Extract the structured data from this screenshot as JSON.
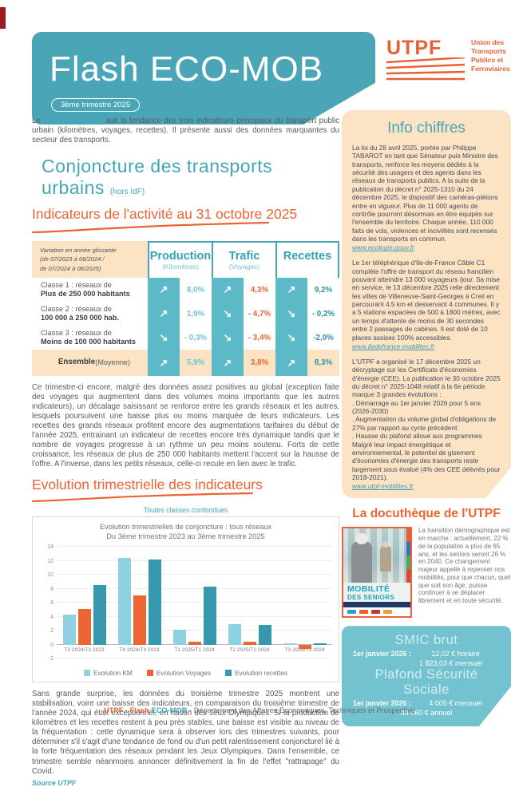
{
  "header": {
    "title": "Flash ECO-MOB",
    "badge": "3ème trimestre 2025",
    "logo": {
      "acronym": "UTPF",
      "name_lines": [
        "Union des",
        "Transports",
        "Publics et",
        "Ferroviaires"
      ]
    }
  },
  "intro": {
    "pre": "Le ",
    "flash": "Flash",
    "ecomob": " ECO-MOB",
    "rest": " suit la tendance des trois indicateurs principaux du transport public urbain (kilomètres, voyages, recettes). Il présente aussi des données marquantes du secteur des transports."
  },
  "section1": {
    "title": "Conjoncture des transports urbains",
    "title_suffix": "(hors IdF)",
    "subtitle": "Indicateurs de l'activité au 31 octobre 2025",
    "table": {
      "variation_note": "Variation en année glissante\n(de 07/2023 à 06/2024 /\nde 07/2024 à 06/2025)",
      "columns": [
        {
          "label": "Production",
          "sub": "(Kilomètres)"
        },
        {
          "label": "Trafic",
          "sub": "(Voyages)"
        },
        {
          "label": "Recettes",
          "sub": ""
        }
      ],
      "rows": [
        {
          "line1": "Classe 1 : réseaux de",
          "line2": "Plus de 250 000 habitants",
          "cells": [
            {
              "arrow": "↗",
              "value": "8,0%"
            },
            {
              "arrow": "↗",
              "value": "4,3%"
            },
            {
              "arrow": "↗",
              "value": "9,2%"
            }
          ]
        },
        {
          "line1": "Classe 2 : réseaux de",
          "line2": "100 000 à 250 000 hab.",
          "cells": [
            {
              "arrow": "↗",
              "value": "1,9%"
            },
            {
              "arrow": "↘",
              "value": "- 4,7%"
            },
            {
              "arrow": "↘",
              "value": "- 0,2%"
            }
          ]
        },
        {
          "line1": "Classe 3 : réseaux de",
          "line2": "Moins de 100 000 habitants",
          "cells": [
            {
              "arrow": "↘",
              "value": "- 0,3%"
            },
            {
              "arrow": "↘",
              "value": "- 3,4%"
            },
            {
              "arrow": "↘",
              "value": "-2,0%"
            }
          ]
        }
      ],
      "total_row": {
        "bold": "Ensemble",
        "normal": " (Moyenne)",
        "cells": [
          {
            "arrow": "↗",
            "value": "5,9%"
          },
          {
            "arrow": "↗",
            "value": "3,8%"
          },
          {
            "arrow": "↗",
            "value": "8,3%"
          }
        ]
      }
    },
    "paragraph": "Ce trimestre-ci encore, malgré des données assez positives au global (exception faite des voyages qui augmentent dans des volumes moins importants que les autres indicateurs), un décalage saisissant se renforce entre les grands réseaux et les autres, lesquels poursuivent une baisse plus ou moins marquée de leurs indicateurs. Les recettes des grands réseaux profitent encore des augmentations tarifaires du début de l'année 2025, entrainant un indicateur de recettes encore très dynamique tandis que le nombre de voyages progresse à un rythme un peu moins soutenu. Forts de cette croissance, les réseaux de plus de 250 000 habitants mettent l'accent sur la hausse de l'offre. A l'inverse, dans les petits réseaux, celle-ci recule en lien avec le trafic."
  },
  "section2": {
    "title": "Evolution trimestrielle des indicateurs",
    "note": "Toutes classes confondues",
    "paragraph": "Sans grande surprise, les données du troisième trimestre 2025 montrent une stabilisation, voire une baisse des indicateurs, en comparaison du troisième trimestre de l'année 2024, qui était exceptionnel, en raison des Jeux Olympiques. Si la production de kilomètres et les recettes restent à peu près stables, une baisse est visible au niveau de la fréquentation : cette dynamique sera à observer lors des trimestres suivants, pour déterminer s'il s'agit d'une tendance de fond ou d'un petit ralentissement conjoncturel lié à la forte fréquentation des réseaux pendant les Jeux Olympiques. Dans l'ensemble, ce trimestre semble néanmoins annoncer définitivement la fin de l'effet \"rattrapage\" du Covid.",
    "source": "Source UTPF"
  },
  "chart_data": {
    "type": "bar",
    "title": "Evolution trimestrielles de conjoncture : tous réseaux",
    "subtitle": "Du 3ème trimestre 2023 au 3ème trimestre 2025",
    "categories": [
      "T3 2024/T3 2023",
      "T4 2024/T4 2023",
      "T1 2025/T1 2024",
      "T2 2025/T2 2024",
      "T3 2025/T3 2024"
    ],
    "series": [
      {
        "name": "Evolution KM",
        "color": "#8ed2e2",
        "values": [
          4.3,
          12.4,
          2.1,
          2.9,
          0.15
        ]
      },
      {
        "name": "Evolution Voyages",
        "color": "#ec6533",
        "values": [
          5.1,
          7.1,
          0.4,
          0.45,
          -0.6
        ]
      },
      {
        "name": "Evolution recettes",
        "color": "#3598ab",
        "values": [
          8.6,
          12.2,
          8.3,
          2.8,
          0.2
        ]
      }
    ],
    "ylim": [
      -2,
      14
    ],
    "ytick_step": 2,
    "grid": true,
    "legend_position": "bottom"
  },
  "sidebar": {
    "title": "Info chiffres",
    "paragraphs": [
      {
        "text": "La loi du 28 avril 2025, portée par Philippe TABAROT en tant que Sénateur puis Ministre des transports, renforce les moyens dédiés à la sécurité des usagers et des agents dans les réseaux de transports publics. A la suite de la publication du décret n° 2025-1310 du 24 décembre 2025, le dispositif des caméras-piétons entre en vigueur. Plus de 11 000 agents de contrôle pourront désormais en être équipés sur l'ensemble du territoire. Chaque année, 110 000 faits de vols, violences et incivilités sont recensés dans les transports en commun.",
        "link": "www.ecologie.gouv.fr"
      },
      {
        "text": "Le 1er téléphérique d'Ile-de-France Câble C1 complète l'offre de transport du réseau francilien pouvant atteindre 13 000 voyageurs /jour. Sa mise en service, le 13 décembre 2025 relie directement les villes de Villeneuve-Saint-Georges à Creil en parcourant 4.5 km et desservant 4 communes. Il y a 5 stations espacées de 500 à 1800 mètres, avec un temps d'attente de moins de 30 secondes entre 2 passages de cabines. Il est doté de 10 places assises 100% accessibles.",
        "link": "www.iledefrance-mobilites.fr"
      },
      {
        "text": "L'UTPF a organisé le 17 décembre 2025 un décryptage sur les Certificats d'économies d'énergie (CEE). La publication le 30 octobre 2025 du décret n° 2025-1048 relatif à la 6e période marque 3 grandes évolutions :\n. Démarrage au 1er janvier 2026 pour 5 ans (2026-2030)\n. Augmentation du volume global d'obligations de 27% par rapport au cycle précédent\n. Hausse du plafond alloué aux programmes\nMalgré leur impact énergétique et environnemental, le potentiel de gisement d'économies d'énergie des transports reste largement sous évalué (4% des CEE délivrés pour 2018-2021).",
        "link": "www.utpf-mobilites.fr"
      }
    ]
  },
  "docutheque": {
    "title": "La docuthèque de l'UTPF",
    "cover_title_line1": "MOBILITÉ",
    "cover_title_line2": "DES SENIORS",
    "text": "La transition démographique est en marche : actuellement, 22 % de la population a plus de 65 ans, et les seniors seront 26 % en 2040. Ce changement majeur appelle à repenser nos mobilités, pour que chacun, quel que soit son âge, puisse continuer à se déplacer librement et en toute sécurité."
  },
  "stats_box": {
    "smic_title": "SMIC brut",
    "smic_date": "1er janvier 2026 :",
    "smic_hourly": "12,02 € horaire",
    "smic_monthly": "1 823,03 € mensuel",
    "pss_title": "Plafond Sécurité Sociale",
    "pss_date": "1er janvier 2026 :",
    "pss_monthly": "4 005 € mensuel",
    "pss_annual": "48 060 € annuel"
  },
  "footer": {
    "utpf": "UTPF",
    "sep1": " - ",
    "flash": "Flash",
    "ecomob": " ECO-MOB",
    "sep2": " - ",
    "dept": "Département des Affaires Economiques, Techniques et Prospective"
  }
}
